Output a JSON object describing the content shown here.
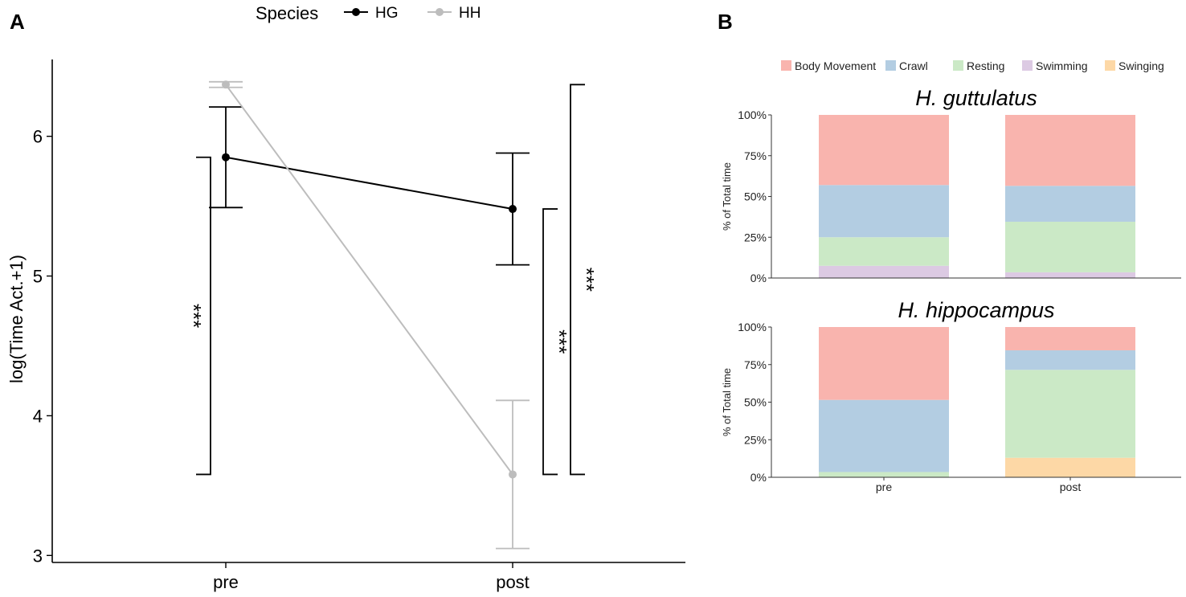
{
  "panels": {
    "a_label": "A",
    "b_label": "B"
  },
  "chart_data": [
    {
      "type": "line",
      "panel": "A",
      "xlabel": "",
      "ylabel": "log(Time Act.+1)",
      "categories": [
        "pre",
        "post"
      ],
      "ylim": [
        2.95,
        6.55
      ],
      "yticks": [
        3,
        4,
        5,
        6
      ],
      "legend": {
        "title": "Species",
        "position": "top"
      },
      "series": [
        {
          "name": "HG",
          "color": "#000000",
          "values": [
            5.85,
            5.48
          ],
          "lower": [
            5.49,
            5.08
          ],
          "upper": [
            6.21,
            5.88
          ]
        },
        {
          "name": "HH",
          "color": "#bdbdbd",
          "values": [
            6.37,
            3.58
          ],
          "lower": [
            6.35,
            3.05
          ],
          "upper": [
            6.39,
            4.11
          ]
        }
      ],
      "significance": [
        {
          "label": "***",
          "between": "HG pre vs HH post",
          "from": 5.85,
          "to": 3.58
        },
        {
          "label": "***",
          "between": "HG post vs HH post",
          "from": 5.48,
          "to": 3.58
        },
        {
          "label": "***",
          "between": "HH pre vs HH post",
          "from": 6.37,
          "to": 3.58
        }
      ]
    },
    {
      "type": "bar",
      "stacked": true,
      "panel": "B",
      "title": "H. guttulatus",
      "ylabel": "% of Total time",
      "categories": [
        "pre",
        "post"
      ],
      "ylim": [
        0,
        100
      ],
      "yticks": [
        "0%",
        "25%",
        "50%",
        "75%",
        "100%"
      ],
      "legend": {
        "position": "top"
      },
      "series": [
        {
          "name": "Swinging",
          "color": "#fdd8a6",
          "values": [
            0,
            0
          ]
        },
        {
          "name": "Swimming",
          "color": "#dccae3",
          "values": [
            7.5,
            3.5
          ]
        },
        {
          "name": "Resting",
          "color": "#cbe9c6",
          "values": [
            17.5,
            31
          ]
        },
        {
          "name": "Crawl",
          "color": "#b3cde2",
          "values": [
            32,
            22
          ]
        },
        {
          "name": "Body Movement",
          "color": "#f9b4ae",
          "values": [
            43,
            43.5
          ]
        }
      ]
    },
    {
      "type": "bar",
      "stacked": true,
      "panel": "B",
      "title": "H. hippocampus",
      "ylabel": "% of Total time",
      "categories": [
        "pre",
        "post"
      ],
      "ylim": [
        0,
        100
      ],
      "yticks": [
        "0%",
        "25%",
        "50%",
        "75%",
        "100%"
      ],
      "series": [
        {
          "name": "Swinging",
          "color": "#fdd8a6",
          "values": [
            0,
            13
          ]
        },
        {
          "name": "Swimming",
          "color": "#dccae3",
          "values": [
            0,
            0
          ]
        },
        {
          "name": "Resting",
          "color": "#cbe9c6",
          "values": [
            3.5,
            58.5
          ]
        },
        {
          "name": "Crawl",
          "color": "#b3cde2",
          "values": [
            48,
            13
          ]
        },
        {
          "name": "Body Movement",
          "color": "#f9b4ae",
          "values": [
            48.5,
            15.5
          ]
        }
      ]
    }
  ],
  "legend_b_order": [
    "Body Movement",
    "Crawl",
    "Resting",
    "Swimming",
    "Swinging"
  ]
}
